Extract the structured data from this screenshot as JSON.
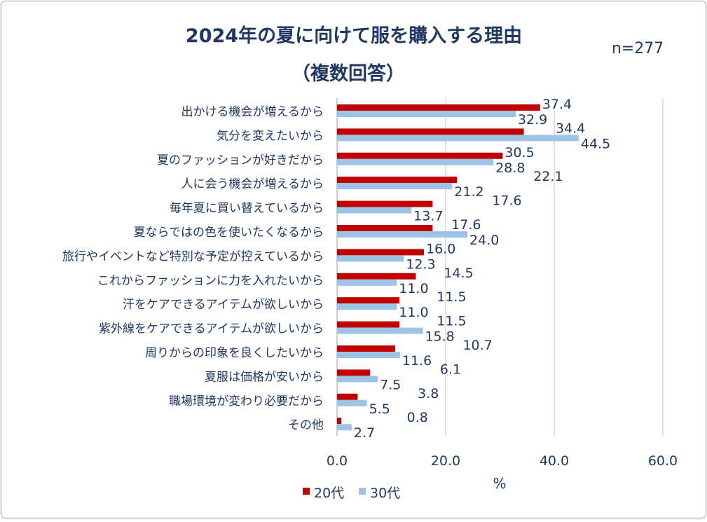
{
  "chart_data": {
    "type": "bar",
    "orientation": "horizontal",
    "title": "2024年の夏に向けて服を購入する理由",
    "subtitle": "（複数回答）",
    "annotation": "n=277",
    "xlabel": "%",
    "xlim": [
      0,
      60
    ],
    "xticks": [
      "0.0",
      "20.0",
      "40.0",
      "60.0"
    ],
    "grid": true,
    "legend_position": "bottom",
    "categories": [
      "出かける機会が増えるから",
      "気分を変えたいから",
      "夏のファッションが好きだから",
      "人に会う機会が増えるから",
      "毎年夏に買い替えているから",
      "夏ならではの色を使いたくなるから",
      "旅行やイベントなど特別な予定が控えているから",
      "これからファッションに力を入れたいから",
      "汗をケアできるアイテムが欲しいから",
      "紫外線をケアできるアイテムが欲しいから",
      "周りからの印象を良くしたいから",
      "夏服は価格が安いから",
      "職場環境が変わり必要だから",
      "その他"
    ],
    "series": [
      {
        "name": "20代",
        "color": "#C00000",
        "values": [
          37.4,
          34.4,
          30.5,
          22.1,
          17.6,
          17.6,
          16.0,
          14.5,
          11.5,
          11.5,
          10.7,
          6.1,
          3.8,
          0.8
        ]
      },
      {
        "name": "30代",
        "color": "#9DC3E6",
        "values": [
          32.9,
          44.5,
          28.8,
          21.2,
          13.7,
          24.0,
          12.3,
          11.0,
          11.0,
          15.8,
          11.6,
          7.5,
          5.5,
          2.7
        ]
      }
    ],
    "text_color": "#203864"
  }
}
